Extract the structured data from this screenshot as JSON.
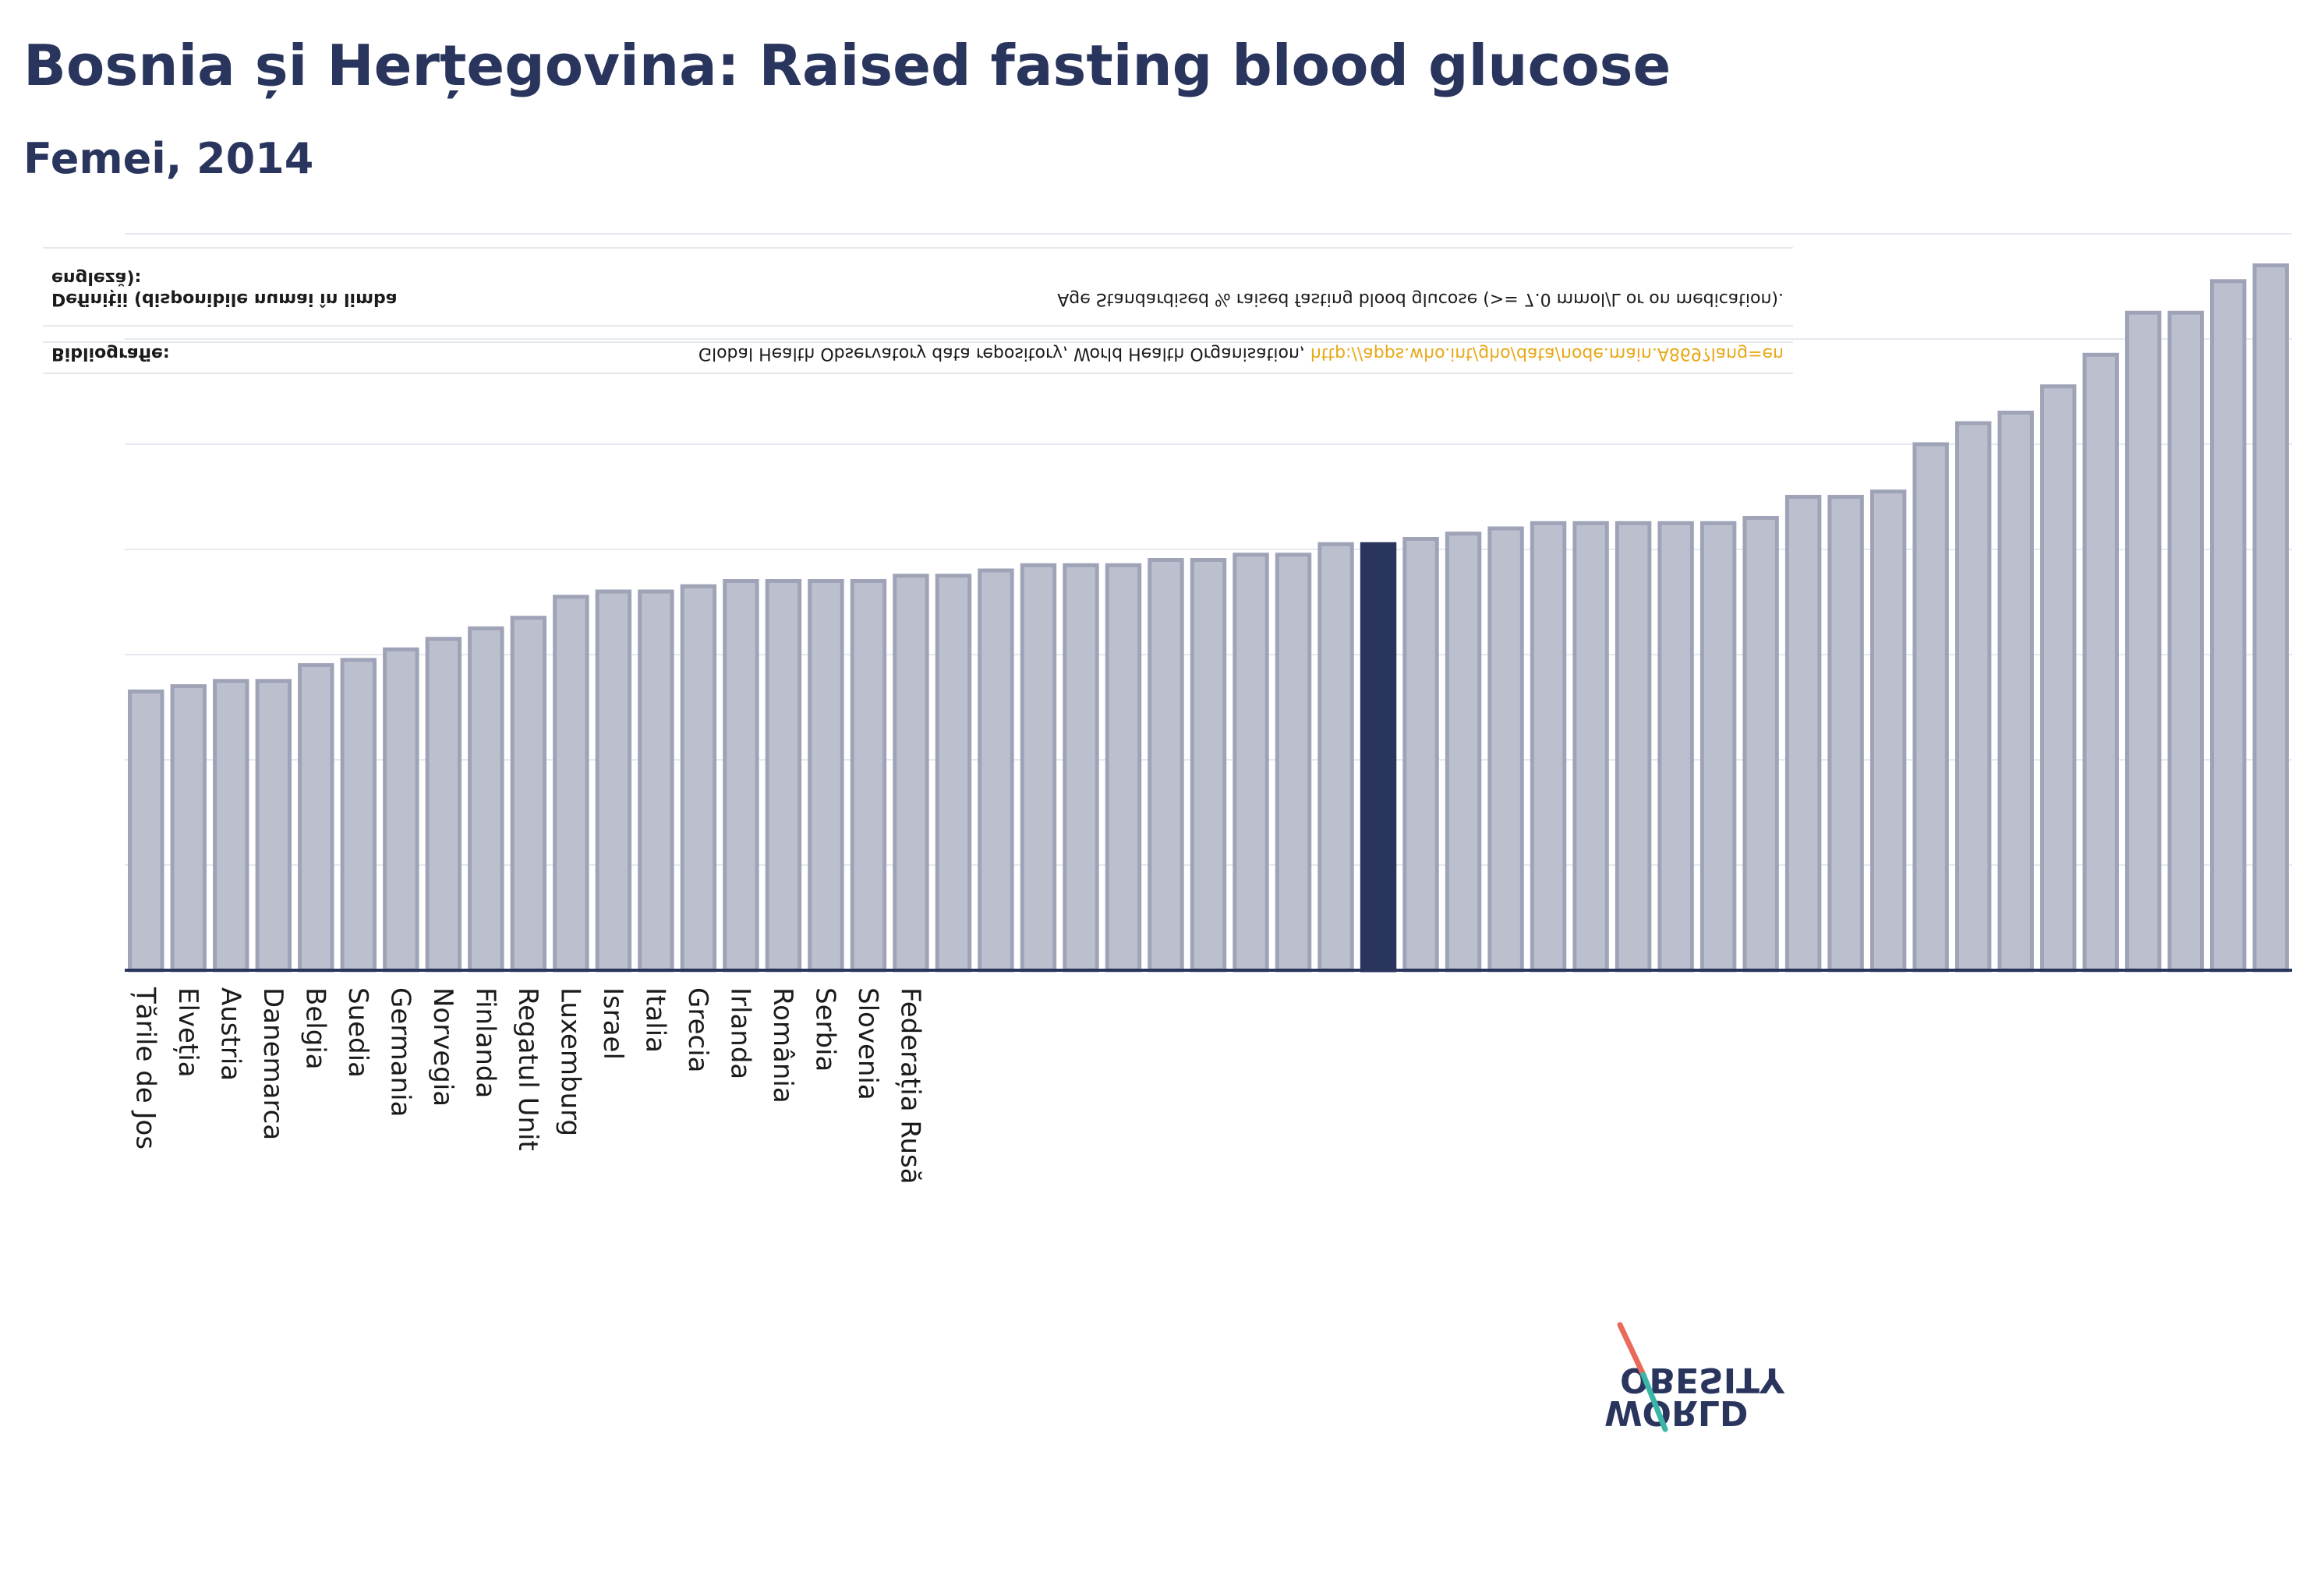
{
  "title": "Bosnia și Herțegovina: Raised fasting blood glucose",
  "subtitle": "Femei, 2014",
  "notes": {
    "bibliography_label": "Bibliografie:",
    "bibliography_text": "Global Health Observatory data repository, World Health Organisation,",
    "bibliography_link": "http://apps.who.int/gho/data/node.main.A869?lang=en",
    "definitions_label_1": "Definiții (disponibile numai în limba",
    "definitions_label_2": "engleză):",
    "definitions_text": "Age Standardised % raised fasting blood glucose (>= 7.0 mmol/L or on medication)."
  },
  "logo": {
    "line1": "OBESITY",
    "line2": "WORLD"
  },
  "colors": {
    "bar": "#bcbfcd",
    "bar_border": "#9fa3b7",
    "highlight": "#2a355e",
    "link": "#e8a817"
  },
  "chart_data": {
    "type": "bar",
    "highlight_index": 29,
    "ylim": [
      0,
      14
    ],
    "grid": true,
    "categories": [
      "Țările de Jos",
      "Elveția",
      "Austria",
      "Danemarca",
      "Belgia",
      "Suedia",
      "Germania",
      "Norvegia",
      "Finlanda",
      "Regatul Unit",
      "Luxemburg",
      "Israel",
      "Italia",
      "Grecia",
      "Irlanda",
      "România",
      "Serbia",
      "Slovenia",
      "Federația Rusă",
      "",
      "",
      "",
      "",
      "",
      "",
      "",
      "",
      "",
      "",
      "Bosnia și Herțegovina",
      "",
      "",
      "",
      "",
      "",
      "",
      "",
      "",
      "",
      "",
      "",
      "",
      "",
      "",
      "",
      "",
      "",
      "",
      "",
      "",
      ""
    ],
    "values": [
      5.3,
      5.4,
      5.5,
      5.5,
      5.8,
      5.9,
      6.1,
      6.3,
      6.5,
      6.7,
      7.1,
      7.2,
      7.2,
      7.3,
      7.4,
      7.4,
      7.4,
      7.4,
      7.5,
      7.5,
      7.6,
      7.7,
      7.7,
      7.7,
      7.8,
      7.8,
      7.9,
      7.9,
      8.1,
      8.1,
      8.2,
      8.3,
      8.4,
      8.5,
      8.5,
      8.5,
      8.5,
      8.5,
      8.6,
      9.0,
      9.0,
      9.1,
      10.0,
      10.4,
      10.6,
      11.1,
      11.7,
      12.5,
      12.5,
      13.1,
      13.4
    ]
  }
}
